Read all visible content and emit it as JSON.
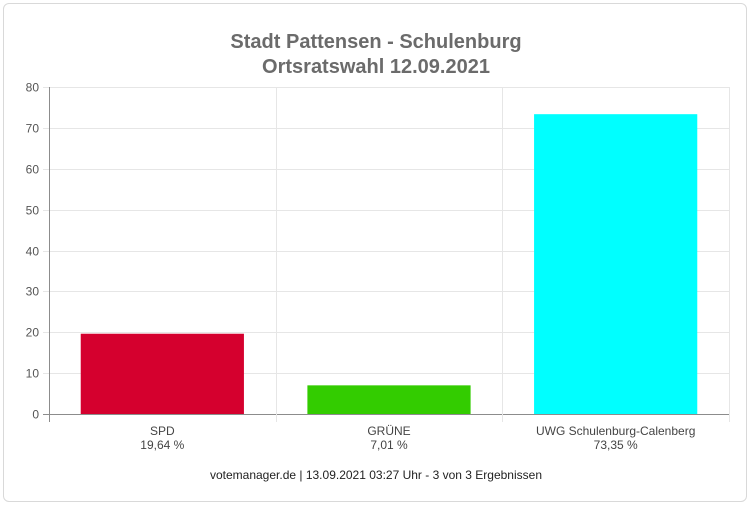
{
  "chart_data": {
    "type": "bar",
    "title": "Stadt Pattensen - Schulenburg",
    "subtitle": "Ortsratswahl 12.09.2021",
    "categories": [
      "SPD",
      "GRÜNE",
      "UWG Schulenburg-Calenberg"
    ],
    "value_labels": [
      "19,64 %",
      "7,01 %",
      "73,35 %"
    ],
    "values": [
      19.64,
      7.01,
      73.35
    ],
    "colors": [
      "#d5002e",
      "#33cc00",
      "#00ffff"
    ],
    "ylim": [
      0,
      80
    ],
    "yticks": [
      0,
      10,
      20,
      30,
      40,
      50,
      60,
      70,
      80
    ],
    "grid": true,
    "xlabel": "",
    "ylabel": ""
  },
  "footer": "votemanager.de | 13.09.2021 03:27 Uhr - 3 von 3 Ergebnissen"
}
